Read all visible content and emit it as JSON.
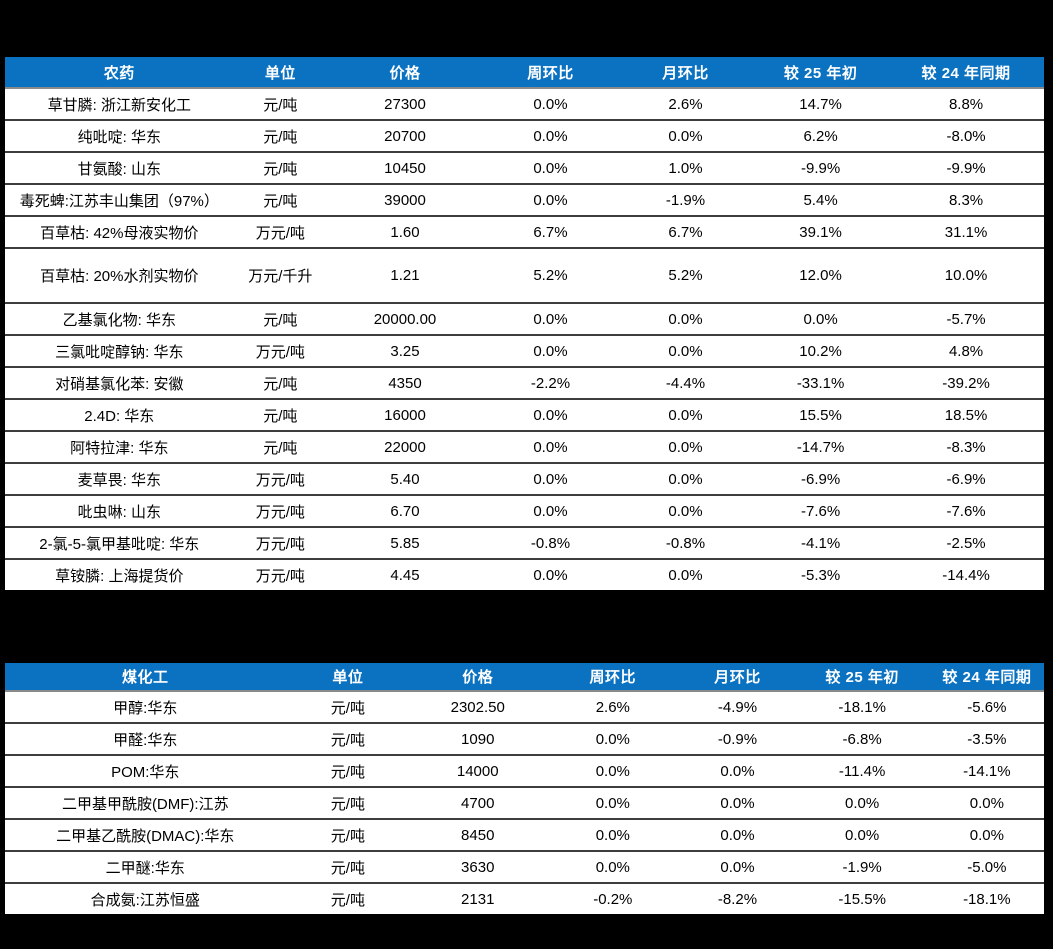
{
  "colors": {
    "page_background": "#000000",
    "table_background": "#FFFFFF",
    "header_background": "#0B72C2",
    "header_text": "#FFFFFF",
    "body_text": "#000000",
    "row_divider": "#3D3D3D"
  },
  "chart_data": [
    {
      "type": "table",
      "title": "农药",
      "columns": [
        "农药",
        "单位",
        "价格",
        "周环比",
        "月环比",
        "较 25 年初",
        "较 24 年同期"
      ],
      "col_widths": [
        "22%",
        "9%",
        "15%",
        "13%",
        "13%",
        "13%",
        "15%"
      ],
      "tall_row_index": 5,
      "rows": [
        [
          "草甘膦: 浙江新安化工",
          "元/吨",
          "27300",
          "0.0%",
          "2.6%",
          "14.7%",
          "8.8%"
        ],
        [
          "纯吡啶: 华东",
          "元/吨",
          "20700",
          "0.0%",
          "0.0%",
          "6.2%",
          "-8.0%"
        ],
        [
          "甘氨酸: 山东",
          "元/吨",
          "10450",
          "0.0%",
          "1.0%",
          "-9.9%",
          "-9.9%"
        ],
        [
          "毒死蜱:江苏丰山集团（97%）",
          "元/吨",
          "39000",
          "0.0%",
          "-1.9%",
          "5.4%",
          "8.3%"
        ],
        [
          "百草枯: 42%母液实物价",
          "万元/吨",
          "1.60",
          "6.7%",
          "6.7%",
          "39.1%",
          "31.1%"
        ],
        [
          "百草枯: 20%水剂实物价",
          "万元/千升",
          "1.21",
          "5.2%",
          "5.2%",
          "12.0%",
          "10.0%"
        ],
        [
          "乙基氯化物: 华东",
          "元/吨",
          "20000.00",
          "0.0%",
          "0.0%",
          "0.0%",
          "-5.7%"
        ],
        [
          "三氯吡啶醇钠: 华东",
          "万元/吨",
          "3.25",
          "0.0%",
          "0.0%",
          "10.2%",
          "4.8%"
        ],
        [
          "对硝基氯化苯: 安徽",
          "元/吨",
          "4350",
          "-2.2%",
          "-4.4%",
          "-33.1%",
          "-39.2%"
        ],
        [
          "2.4D: 华东",
          "元/吨",
          "16000",
          "0.0%",
          "0.0%",
          "15.5%",
          "18.5%"
        ],
        [
          "阿特拉津: 华东",
          "元/吨",
          "22000",
          "0.0%",
          "0.0%",
          "-14.7%",
          "-8.3%"
        ],
        [
          "麦草畏: 华东",
          "万元/吨",
          "5.40",
          "0.0%",
          "0.0%",
          "-6.9%",
          "-6.9%"
        ],
        [
          "吡虫啉: 山东",
          "万元/吨",
          "6.70",
          "0.0%",
          "0.0%",
          "-7.6%",
          "-7.6%"
        ],
        [
          "2-氯-5-氯甲基吡啶: 华东",
          "万元/吨",
          "5.85",
          "-0.8%",
          "-0.8%",
          "-4.1%",
          "-2.5%"
        ],
        [
          "草铵膦: 上海提货价",
          "万元/吨",
          "4.45",
          "0.0%",
          "0.0%",
          "-5.3%",
          "-14.4%"
        ]
      ]
    },
    {
      "type": "table",
      "title": "煤化工",
      "columns": [
        "煤化工",
        "单位",
        "价格",
        "周环比",
        "月环比",
        "较 25 年初",
        "较 24 年同期"
      ],
      "col_widths": [
        "27%",
        "12%",
        "13%",
        "13%",
        "11%",
        "13%",
        "11%"
      ],
      "tall_row_index": -1,
      "rows": [
        [
          "甲醇:华东",
          "元/吨",
          "2302.50",
          "2.6%",
          "-4.9%",
          "-18.1%",
          "-5.6%"
        ],
        [
          "甲醛:华东",
          "元/吨",
          "1090",
          "0.0%",
          "-0.9%",
          "-6.8%",
          "-3.5%"
        ],
        [
          "POM:华东",
          "元/吨",
          "14000",
          "0.0%",
          "0.0%",
          "-11.4%",
          "-14.1%"
        ],
        [
          "二甲基甲酰胺(DMF):江苏",
          "元/吨",
          "4700",
          "0.0%",
          "0.0%",
          "0.0%",
          "0.0%"
        ],
        [
          "二甲基乙酰胺(DMAC):华东",
          "元/吨",
          "8450",
          "0.0%",
          "0.0%",
          "0.0%",
          "0.0%"
        ],
        [
          "二甲醚:华东",
          "元/吨",
          "3630",
          "0.0%",
          "0.0%",
          "-1.9%",
          "-5.0%"
        ],
        [
          "合成氨:江苏恒盛",
          "元/吨",
          "2131",
          "-0.2%",
          "-8.2%",
          "-15.5%",
          "-18.1%"
        ]
      ]
    }
  ]
}
